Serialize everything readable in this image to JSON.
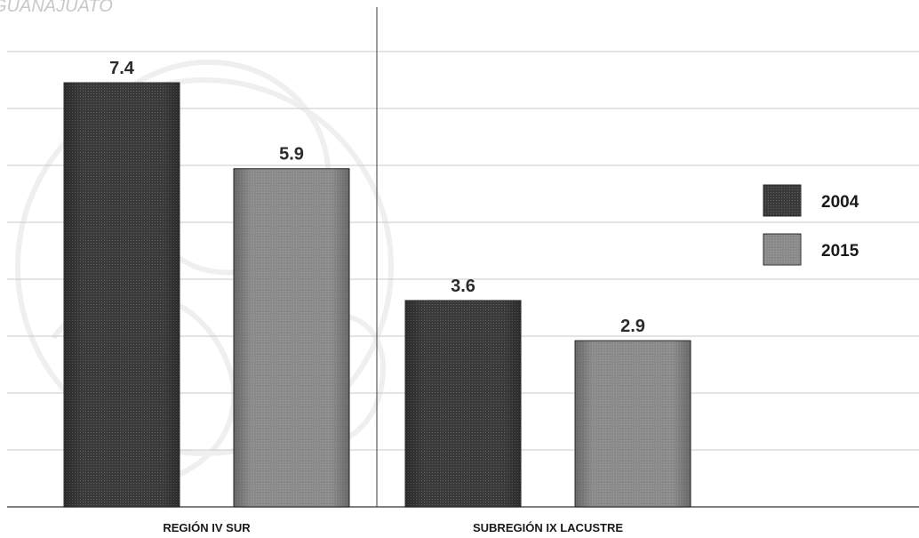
{
  "watermark_text": "GUANAJUATO",
  "chart_data": {
    "type": "bar",
    "categories": [
      "REGIÓN IV SUR",
      "SUBREGIÓN IX LACUSTRE"
    ],
    "series": [
      {
        "name": "2004",
        "values": [
          7.4,
          3.6
        ],
        "color": "#3a3a3a"
      },
      {
        "name": "2015",
        "values": [
          5.9,
          2.9
        ],
        "color": "#8a8a8a"
      }
    ],
    "value_labels": [
      [
        "7.4",
        "3.6"
      ],
      [
        "5.9",
        "2.9"
      ]
    ],
    "ylim": [
      0,
      8
    ],
    "grid": true,
    "legend_position": "right",
    "title": "",
    "xlabel": "",
    "ylabel": ""
  }
}
